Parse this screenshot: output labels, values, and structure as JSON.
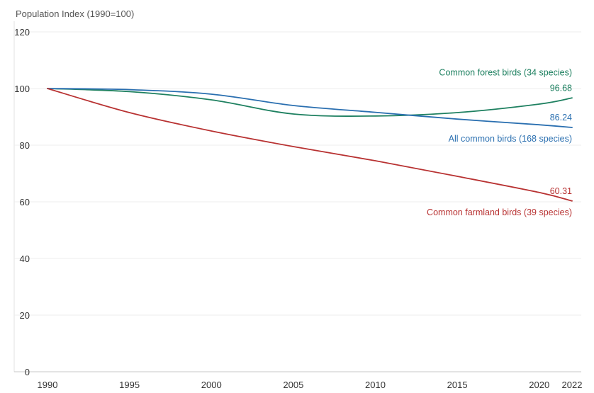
{
  "chart_data": {
    "type": "line",
    "ylabel": "Population Index (1990=100)",
    "x": [
      1990,
      1995,
      2000,
      2005,
      2010,
      2015,
      2020,
      2022
    ],
    "xlim": [
      1990,
      2022
    ],
    "ylim": [
      0,
      120
    ],
    "xticks": [
      "1990",
      "1995",
      "2000",
      "2005",
      "2010",
      "2015",
      "2020",
      "2022"
    ],
    "yticks": [
      "0",
      "20",
      "40",
      "60",
      "80",
      "100",
      "120"
    ],
    "grid": true,
    "series": [
      {
        "name": "Common forest birds (34 species)",
        "color": "#1e8060",
        "end_value": "96.68",
        "values": [
          100,
          98.9,
          96.0,
          91.0,
          90.3,
          91.5,
          94.5,
          96.68
        ]
      },
      {
        "name": "All common birds (168 species)",
        "color": "#2a6fb0",
        "end_value": "86.24",
        "values": [
          100,
          99.6,
          98.0,
          94.0,
          91.6,
          89.2,
          87.2,
          86.24
        ]
      },
      {
        "name": "Common farmland birds (39 species)",
        "color": "#b83232",
        "end_value": "60.31",
        "values": [
          100,
          91.5,
          85.0,
          79.5,
          74.5,
          69.0,
          63.3,
          60.31
        ]
      }
    ]
  }
}
